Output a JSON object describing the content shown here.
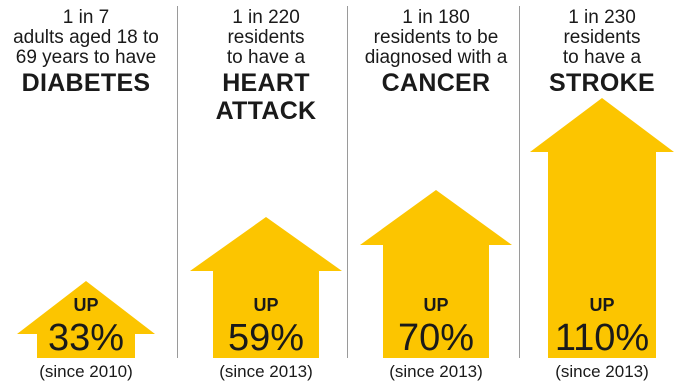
{
  "accent_color": "#fcc500",
  "panels": [
    {
      "caption_lines": [
        "1 in 7",
        "adults aged 18 to",
        "69 years to have"
      ],
      "condition_lines": [
        "DIABETES"
      ],
      "up_label": "UP",
      "percent": "33%",
      "since": "(since 2010)",
      "increase_percent": 33
    },
    {
      "caption_lines": [
        "1 in 220",
        "residents",
        "to have a"
      ],
      "condition_lines": [
        "HEART",
        "ATTACK"
      ],
      "up_label": "UP",
      "percent": "59%",
      "since": "(since 2013)",
      "increase_percent": 59
    },
    {
      "caption_lines": [
        "1 in 180",
        "residents to be",
        "diagnosed with a"
      ],
      "condition_lines": [
        "CANCER"
      ],
      "up_label": "UP",
      "percent": "70%",
      "since": "(since 2013)",
      "increase_percent": 70
    },
    {
      "caption_lines": [
        "1 in 230",
        "residents",
        "to have a"
      ],
      "condition_lines": [
        "STROKE"
      ],
      "up_label": "UP",
      "percent": "110%",
      "since": "(since 2013)",
      "increase_percent": 110
    }
  ]
}
